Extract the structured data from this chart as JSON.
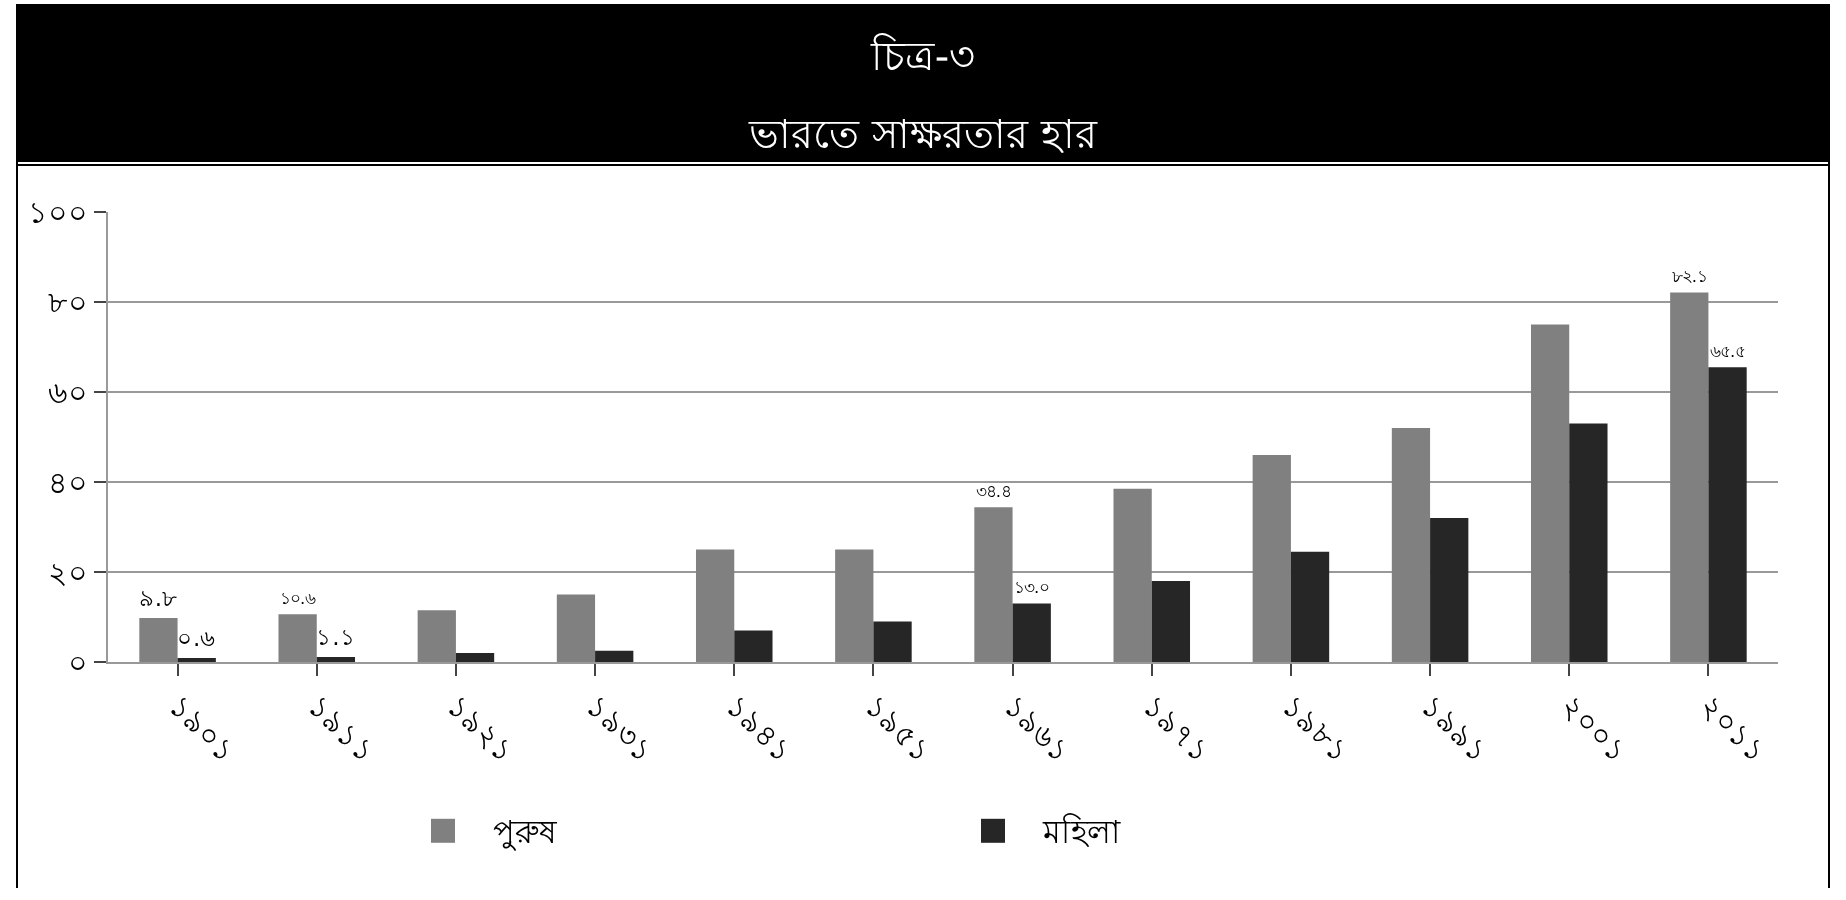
{
  "chart_data": {
    "type": "bar",
    "title": "চিত্র-৩",
    "subtitle": "ভারতে সাক্ষরতার হার",
    "categories": [
      "১৯০১",
      "১৯১১",
      "১৯২১",
      "১৯৩১",
      "১৯৪১",
      "১৯৫১",
      "১৯৬১",
      "১৯৭১",
      "১৯৮১",
      "১৯৯১",
      "২০০১",
      "২০১১"
    ],
    "series": [
      {
        "name": "পুরুষ",
        "color": "#808080",
        "values": [
          9.8,
          10.6,
          11.5,
          15,
          25,
          25,
          34.4,
          38.5,
          46,
          52,
          75,
          82.1
        ],
        "value_labels": [
          "৯.৮",
          "১০.৬",
          null,
          null,
          null,
          null,
          "৩৪.৪",
          null,
          null,
          null,
          null,
          "৮২.১"
        ]
      },
      {
        "name": "মহিলা",
        "color": "#262626",
        "values": [
          0.6,
          1.1,
          2,
          2.5,
          7,
          9,
          13.0,
          18,
          24.5,
          32,
          53,
          65.5
        ],
        "value_labels": [
          "০.৬",
          "১.১",
          null,
          null,
          null,
          null,
          "১৩.০",
          null,
          null,
          null,
          null,
          "৬৫.৫"
        ]
      }
    ],
    "ylim": [
      0,
      100
    ],
    "yticks": [
      {
        "value": 0,
        "label": "০"
      },
      {
        "value": 20,
        "label": "২০"
      },
      {
        "value": 40,
        "label": "৪০"
      },
      {
        "value": 60,
        "label": "৬০"
      },
      {
        "value": 80,
        "label": "৮০"
      },
      {
        "value": 100,
        "label": "১০০"
      }
    ],
    "grid": "y",
    "legend": "bottom"
  }
}
